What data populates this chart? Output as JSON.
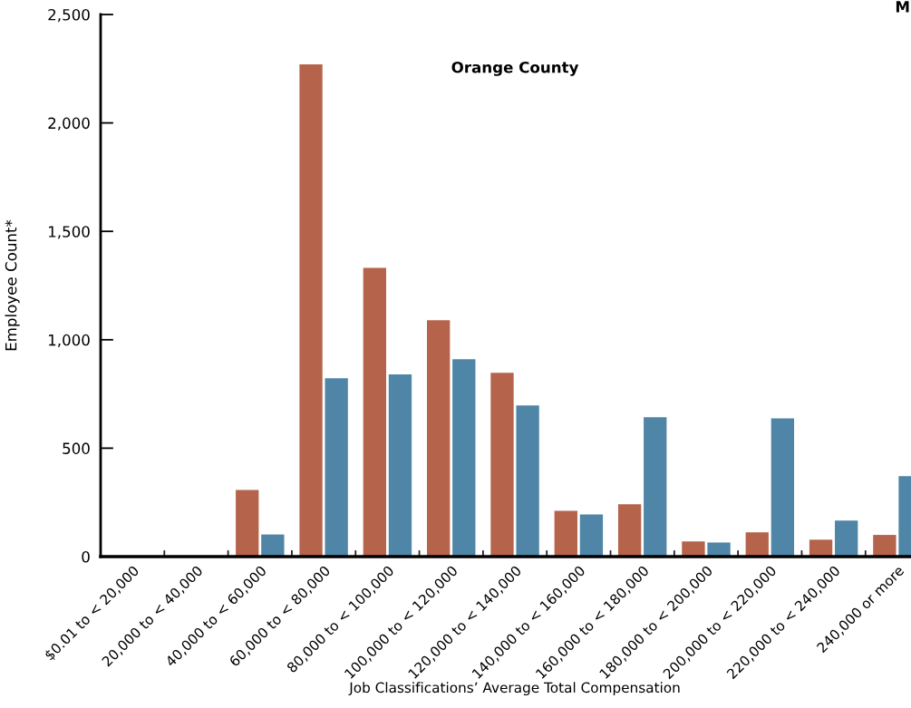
{
  "chart_data": {
    "type": "bar",
    "title": "Orange County",
    "xlabel": "Job Classifications’ Average Total Compensation",
    "ylabel": "Employee Count*",
    "categories": [
      "$0.01 to < 20,000",
      "20,000 to < 40,000",
      "40,000 to < 60,000",
      "60,000 to < 80,000",
      "80,000 to < 100,000",
      "100,000 to < 120,000",
      "120,000 to < 140,000",
      "140,000 to < 160,000",
      "160,000 to < 180,000",
      "180,000 to < 200,000",
      "200,000 to < 220,000",
      "220,000 to < 240,000",
      "240,000 or more"
    ],
    "series": [
      {
        "color": "#b5634a",
        "values": [
          0,
          0,
          307,
          2270,
          1332,
          1090,
          848,
          211,
          241,
          70,
          112,
          78,
          100
        ]
      },
      {
        "color": "#4f85a6",
        "values": [
          0,
          0,
          102,
          823,
          840,
          910,
          697,
          194,
          643,
          65,
          638,
          166,
          371
        ]
      }
    ],
    "ylim": [
      0,
      2500
    ],
    "yticks": [
      {
        "value": 0,
        "label": "0"
      },
      {
        "value": 500,
        "label": "500"
      },
      {
        "value": 1000,
        "label": "1,000"
      },
      {
        "value": 1500,
        "label": "1,500"
      },
      {
        "value": 2000,
        "label": "2,000"
      },
      {
        "value": 2500,
        "label": "2,500"
      }
    ],
    "annotations": [
      "M"
    ],
    "grid": false,
    "legend": false
  }
}
